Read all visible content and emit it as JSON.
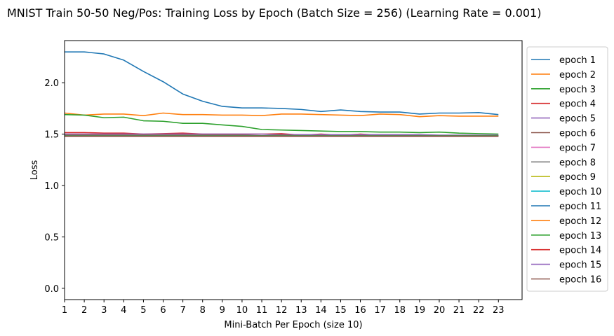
{
  "chart_data": {
    "type": "line",
    "title": "MNIST Train 50-50 Neg/Pos: Training Loss by Epoch (Batch Size = 256) (Learning Rate = 0.001)",
    "xlabel": "Mini-Batch Per Epoch (size 10)",
    "ylabel": "Loss",
    "xlim": [
      1,
      24.2
    ],
    "ylim": [
      -0.11,
      2.41
    ],
    "x_ticks": [
      1,
      2,
      3,
      4,
      5,
      6,
      7,
      8,
      9,
      10,
      11,
      12,
      13,
      14,
      15,
      16,
      17,
      18,
      19,
      20,
      21,
      22,
      23
    ],
    "y_ticks": [
      0.0,
      0.5,
      1.0,
      1.5,
      2.0
    ],
    "y_tick_labels": [
      "0.0",
      "0.5",
      "1.0",
      "1.5",
      "2.0"
    ],
    "grid": false,
    "legend_position": "outside-right",
    "x": [
      1,
      2,
      3,
      4,
      5,
      6,
      7,
      8,
      9,
      10,
      11,
      12,
      13,
      14,
      15,
      16,
      17,
      18,
      19,
      20,
      21,
      22,
      23
    ],
    "series": [
      {
        "name": "epoch 1",
        "color": "#1f77b4",
        "values": [
          2.3,
          2.3,
          2.28,
          2.22,
          2.11,
          2.01,
          1.89,
          1.82,
          1.77,
          1.755,
          1.755,
          1.75,
          1.74,
          1.72,
          1.735,
          1.72,
          1.715,
          1.715,
          1.695,
          1.705,
          1.705,
          1.71,
          1.69
        ]
      },
      {
        "name": "epoch 2",
        "color": "#ff7f0e",
        "values": [
          1.705,
          1.685,
          1.695,
          1.695,
          1.68,
          1.705,
          1.69,
          1.69,
          1.685,
          1.685,
          1.68,
          1.695,
          1.695,
          1.69,
          1.685,
          1.68,
          1.695,
          1.69,
          1.67,
          1.68,
          1.675,
          1.675,
          1.675
        ]
      },
      {
        "name": "epoch 3",
        "color": "#2ca02c",
        "values": [
          1.69,
          1.685,
          1.66,
          1.665,
          1.63,
          1.625,
          1.605,
          1.605,
          1.59,
          1.575,
          1.545,
          1.54,
          1.535,
          1.53,
          1.525,
          1.525,
          1.52,
          1.52,
          1.515,
          1.52,
          1.51,
          1.505,
          1.5
        ]
      },
      {
        "name": "epoch 4",
        "color": "#d62728",
        "values": [
          1.515,
          1.515,
          1.51,
          1.51,
          1.5,
          1.505,
          1.51,
          1.5,
          1.5,
          1.5,
          1.5,
          1.505,
          1.49,
          1.5,
          1.49,
          1.5,
          1.49,
          1.49,
          1.49,
          1.48,
          1.485,
          1.48,
          1.48
        ]
      },
      {
        "name": "epoch 5",
        "color": "#9467bd",
        "values": [
          1.5,
          1.5,
          1.5,
          1.5,
          1.5,
          1.5,
          1.5,
          1.5,
          1.5,
          1.5,
          1.5,
          1.495,
          1.495,
          1.495,
          1.495,
          1.495,
          1.495,
          1.495,
          1.495,
          1.49,
          1.49,
          1.49,
          1.49
        ]
      },
      {
        "name": "epoch 6",
        "color": "#8c564b",
        "values": [
          1.49,
          1.49,
          1.49,
          1.49,
          1.49,
          1.49,
          1.49,
          1.49,
          1.49,
          1.49,
          1.485,
          1.49,
          1.485,
          1.485,
          1.485,
          1.485,
          1.485,
          1.485,
          1.485,
          1.485,
          1.485,
          1.485,
          1.485
        ]
      },
      {
        "name": "epoch 7",
        "color": "#e377c2",
        "values": [
          1.485,
          1.485,
          1.485,
          1.485,
          1.485,
          1.485,
          1.485,
          1.485,
          1.485,
          1.485,
          1.485,
          1.485,
          1.485,
          1.485,
          1.485,
          1.485,
          1.485,
          1.485,
          1.485,
          1.485,
          1.485,
          1.485,
          1.485
        ]
      },
      {
        "name": "epoch 8",
        "color": "#7f7f7f",
        "values": [
          1.485,
          1.485,
          1.485,
          1.485,
          1.485,
          1.485,
          1.485,
          1.485,
          1.485,
          1.485,
          1.485,
          1.485,
          1.485,
          1.485,
          1.485,
          1.485,
          1.485,
          1.485,
          1.485,
          1.485,
          1.485,
          1.485,
          1.485
        ]
      },
      {
        "name": "epoch 9",
        "color": "#bcbd22",
        "values": [
          1.485,
          1.485,
          1.485,
          1.485,
          1.485,
          1.485,
          1.485,
          1.485,
          1.485,
          1.485,
          1.485,
          1.485,
          1.485,
          1.485,
          1.485,
          1.485,
          1.485,
          1.485,
          1.485,
          1.485,
          1.485,
          1.485,
          1.485
        ]
      },
      {
        "name": "epoch 10",
        "color": "#17becf",
        "values": [
          1.485,
          1.485,
          1.485,
          1.485,
          1.485,
          1.485,
          1.485,
          1.485,
          1.485,
          1.485,
          1.485,
          1.485,
          1.485,
          1.485,
          1.485,
          1.485,
          1.485,
          1.485,
          1.485,
          1.485,
          1.485,
          1.485,
          1.485
        ]
      },
      {
        "name": "epoch 11",
        "color": "#1f77b4",
        "values": [
          1.485,
          1.485,
          1.485,
          1.485,
          1.485,
          1.485,
          1.485,
          1.485,
          1.485,
          1.485,
          1.485,
          1.485,
          1.485,
          1.485,
          1.485,
          1.485,
          1.485,
          1.485,
          1.485,
          1.485,
          1.485,
          1.485,
          1.485
        ]
      },
      {
        "name": "epoch 12",
        "color": "#ff7f0e",
        "values": [
          1.485,
          1.485,
          1.485,
          1.485,
          1.485,
          1.485,
          1.485,
          1.485,
          1.485,
          1.485,
          1.485,
          1.485,
          1.485,
          1.485,
          1.485,
          1.485,
          1.485,
          1.485,
          1.485,
          1.485,
          1.485,
          1.485,
          1.485
        ]
      },
      {
        "name": "epoch 13",
        "color": "#2ca02c",
        "values": [
          1.485,
          1.485,
          1.485,
          1.485,
          1.485,
          1.485,
          1.485,
          1.485,
          1.485,
          1.485,
          1.485,
          1.485,
          1.485,
          1.485,
          1.485,
          1.485,
          1.485,
          1.485,
          1.485,
          1.485,
          1.485,
          1.485,
          1.485
        ]
      },
      {
        "name": "epoch 14",
        "color": "#d62728",
        "values": [
          1.48,
          1.48,
          1.48,
          1.48,
          1.48,
          1.48,
          1.48,
          1.48,
          1.48,
          1.48,
          1.48,
          1.48,
          1.48,
          1.48,
          1.48,
          1.48,
          1.48,
          1.48,
          1.48,
          1.48,
          1.48,
          1.48,
          1.48
        ]
      },
      {
        "name": "epoch 15",
        "color": "#9467bd",
        "values": [
          1.48,
          1.48,
          1.48,
          1.48,
          1.48,
          1.48,
          1.48,
          1.48,
          1.48,
          1.48,
          1.48,
          1.48,
          1.48,
          1.48,
          1.48,
          1.48,
          1.48,
          1.48,
          1.48,
          1.48,
          1.48,
          1.48,
          1.48
        ]
      },
      {
        "name": "epoch 16",
        "color": "#8c564b",
        "values": [
          1.478,
          1.478,
          1.478,
          1.478,
          1.478,
          1.478,
          1.478,
          1.478,
          1.478,
          1.478,
          1.478,
          1.478,
          1.478,
          1.478,
          1.478,
          1.478,
          1.478,
          1.478,
          1.478,
          1.478,
          1.478,
          1.478,
          1.478
        ]
      }
    ]
  }
}
